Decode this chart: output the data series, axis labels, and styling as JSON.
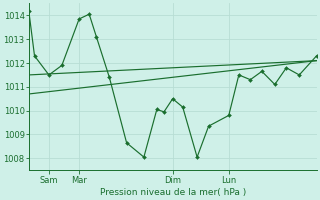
{
  "background_color": "#cff0e8",
  "grid_color": "#b8ddd4",
  "line_color": "#1a6e2e",
  "marker_color": "#1a6e2e",
  "xlabel_text": "Pression niveau de la mer( hPa )",
  "ylim": [
    1007.5,
    1014.5
  ],
  "yticks": [
    1008,
    1009,
    1010,
    1011,
    1012,
    1013,
    1014
  ],
  "xlim": [
    0,
    1
  ],
  "day_labels": [
    "Sam",
    "Mar",
    "Dim",
    "Lun"
  ],
  "day_positions": [
    0.07,
    0.175,
    0.5,
    0.695
  ],
  "line1_x": [
    0.0,
    0.02,
    0.07,
    0.115,
    0.175,
    0.21,
    0.235,
    0.28,
    0.34,
    0.4,
    0.445,
    0.47,
    0.5,
    0.535,
    0.585,
    0.625,
    0.695,
    0.73,
    0.77,
    0.81,
    0.855,
    0.895,
    0.94,
    1.0
  ],
  "line1_y": [
    1014.2,
    1012.3,
    1011.5,
    1011.9,
    1013.85,
    1014.05,
    1013.1,
    1011.4,
    1008.65,
    1008.05,
    1010.05,
    1009.95,
    1010.5,
    1010.15,
    1008.05,
    1009.35,
    1009.8,
    1011.5,
    1011.3,
    1011.65,
    1011.1,
    1011.8,
    1011.5,
    1012.3
  ],
  "line2_x": [
    0.0,
    1.0
  ],
  "line2_y": [
    1011.5,
    1012.1
  ],
  "line3_x": [
    0.0,
    1.0
  ],
  "line3_y": [
    1010.7,
    1012.1
  ]
}
